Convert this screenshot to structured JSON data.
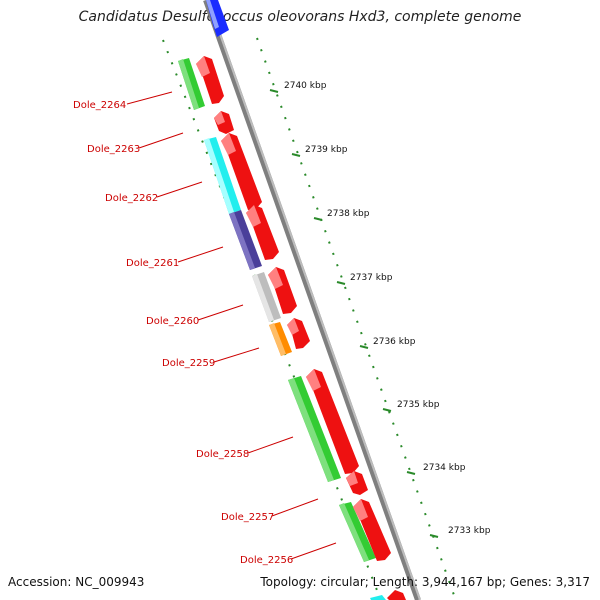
{
  "title": "Candidatus Desulfococcus oleovorans Hxd3, complete genome",
  "accession": "Accession: NC_009943",
  "info": "Topology: circular; Length: 3,944,167 bp; Genes: 3,317",
  "scale_labels": [
    "2740 kbp",
    "2739 kbp",
    "2738 kbp",
    "2737 kbp",
    "2736 kbp",
    "2735 kbp",
    "2734 kbp",
    "2733 kbp"
  ],
  "gene_labels": [
    "Dole_2264",
    "Dole_2263",
    "Dole_2262",
    "Dole_2261",
    "Dole_2260",
    "Dole_2259",
    "Dole_2258",
    "Dole_2257",
    "Dole_2256"
  ],
  "colors": {
    "backbone": "#8a8a8a",
    "forward_cds": "#ee1111",
    "label": "#cc0000",
    "tick": "#2a8a2a",
    "green": "#33cc33",
    "cyan": "#22eeee",
    "navy": "#4a3f9a",
    "gray": "#bdbdbd",
    "orange": "#ff8c00",
    "blue": "#1a2cff"
  }
}
